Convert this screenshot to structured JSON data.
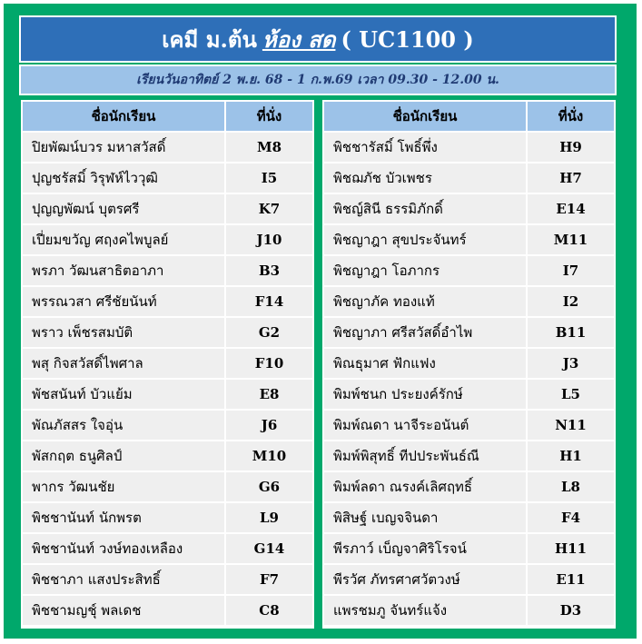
{
  "header": {
    "title_prefix": "เคมี ม.ต้น",
    "title_room": "ห้อง สด",
    "title_code": "( UC1100 )"
  },
  "subheader": {
    "schedule": "เรียนวันอาทิตย์ 2 พ.ย. 68 - 1 ก.พ.69 เวลา  09.30 - 12.00 น."
  },
  "columns": {
    "name": "ชื่อนักเรียน",
    "seat": "ที่นั่ง"
  },
  "left_students": [
    {
      "name": "ปิยพัฒน์บวร มหาสวัสดิ์",
      "seat": "M8"
    },
    {
      "name": "ปุญชรัสมิ์ วิรุฬห์ไววุฒิ",
      "seat": "I5"
    },
    {
      "name": "ปุญญพัฒน์ บุตรศรี",
      "seat": "K7"
    },
    {
      "name": "เปี่ยมขวัญ ศฤงคไพบูลย์",
      "seat": "J10"
    },
    {
      "name": "พรภา วัฒนสาธิตอาภา",
      "seat": "B3"
    },
    {
      "name": "พรรณวสา ศรีชัยนันท์",
      "seat": "F14"
    },
    {
      "name": "พราว เพ็ชรสมบัติ",
      "seat": "G2"
    },
    {
      "name": "พสุ กิจสวัสดิ์ไพศาล",
      "seat": "F10"
    },
    {
      "name": "พัชสนันท์ บัวแย้ม",
      "seat": "E8"
    },
    {
      "name": "พัณภัสสร ใจอุ่น",
      "seat": "J6"
    },
    {
      "name": "พัสกฤต ธนูศิลป์",
      "seat": "M10"
    },
    {
      "name": "พากร วัฒนชัย",
      "seat": "G6"
    },
    {
      "name": "พิชชานันท์ นักพรต",
      "seat": "L9"
    },
    {
      "name": "พิชชานันท์ วงษ์ทองเหลือง",
      "seat": "G14"
    },
    {
      "name": "พิชชาภา แสงประสิทธิ์",
      "seat": "F7"
    },
    {
      "name": "พิชชามญชุ์  พลเดช",
      "seat": "C8"
    }
  ],
  "right_students": [
    {
      "name": "พิชชารัสมิ์ โพธิ์พึ่ง",
      "seat": "H9"
    },
    {
      "name": "พิชฌภัช บัวเพชร",
      "seat": "H7"
    },
    {
      "name": "พิชญ์สินี ธรรมิภักดิ์",
      "seat": "E14"
    },
    {
      "name": "พิชญาฎา สุขประจันทร์",
      "seat": "M11"
    },
    {
      "name": "พิชญาฎา โอภากร",
      "seat": "I7"
    },
    {
      "name": "พิชญาภัค ทองแท้",
      "seat": "I2"
    },
    {
      "name": "พิชญาภา ศรีสวัสดิ์อำไพ",
      "seat": "B11"
    },
    {
      "name": "พิณธุมาศ ฟักแฟง",
      "seat": "J3"
    },
    {
      "name": "พิมพ์ชนก ประยงค์รักษ์",
      "seat": "L5"
    },
    {
      "name": "พิมพ์ณดา นาจีระอนันต์",
      "seat": "N11"
    },
    {
      "name": "พิมพ์พิสุทธิ์ ทีปประพันธ์ณี",
      "seat": "H1"
    },
    {
      "name": "พิมพ์ลดา ณรงค์เลิศฤทธิ์",
      "seat": "L8"
    },
    {
      "name": "พิสิษฐ์ เบญจจินดา",
      "seat": "F4"
    },
    {
      "name": "พีรภาว์ เบ็ญจาศิริโรจน์",
      "seat": "H11"
    },
    {
      "name": "พีรวัศ ภัทรศาศวัตวงษ์",
      "seat": "E11"
    },
    {
      "name": "แพรชมภู จันทร์แจ้ง",
      "seat": "D3"
    }
  ]
}
